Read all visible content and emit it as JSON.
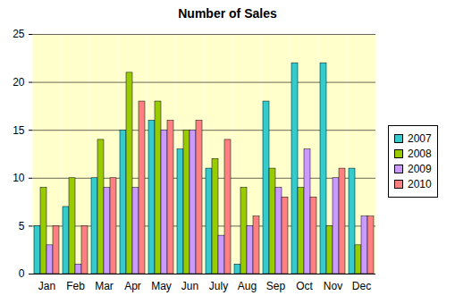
{
  "chart_data": {
    "type": "bar",
    "title": "Number of Sales",
    "categories": [
      "Jan",
      "Feb",
      "Mar",
      "Apr",
      "May",
      "Jun",
      "July",
      "Aug",
      "Sep",
      "Oct",
      "Nov",
      "Dec"
    ],
    "series": [
      {
        "name": "2007",
        "color": "#33cccc",
        "values": [
          5,
          7,
          10,
          15,
          16,
          13,
          11,
          1,
          18,
          22,
          22,
          11
        ]
      },
      {
        "name": "2008",
        "color": "#99cc00",
        "values": [
          9,
          10,
          14,
          21,
          18,
          15,
          12,
          9,
          11,
          9,
          5,
          3
        ]
      },
      {
        "name": "2009",
        "color": "#cc99ff",
        "values": [
          3,
          1,
          9,
          9,
          15,
          15,
          4,
          5,
          9,
          13,
          10,
          6
        ]
      },
      {
        "name": "2010",
        "color": "#ff8080",
        "values": [
          5,
          5,
          10,
          18,
          16,
          16,
          14,
          6,
          8,
          8,
          11,
          6
        ]
      }
    ],
    "ylim": [
      0,
      25
    ],
    "yticks": [
      0,
      5,
      10,
      15,
      20,
      25
    ],
    "grid": true,
    "legend": "right"
  }
}
